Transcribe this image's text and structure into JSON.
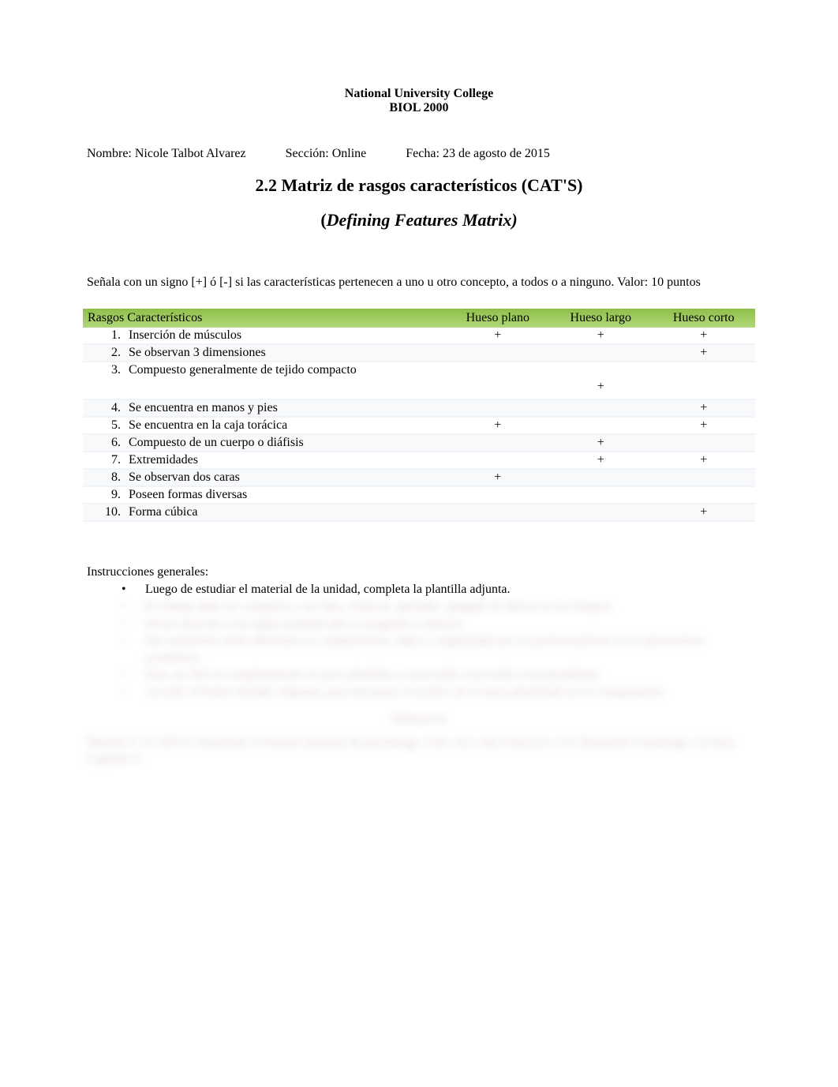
{
  "header": {
    "line1": "National University College",
    "line2": "BIOL 2000"
  },
  "info": {
    "name_label": "Nombre: ",
    "name_value": "Nicole Talbot Alvarez",
    "section_label": "Sección: ",
    "section_value": "Online",
    "date_label": "Fecha: ",
    "date_value": "23 de agosto de 2015"
  },
  "title": {
    "main": "2.2 Matriz de rasgos característicos (CAT'S)",
    "sub_open": "(",
    "sub_italic": "Defining Features Matrix)",
    "sub_close": ""
  },
  "instructions_top": "Señala con un signo  [+]   ó  [-]    si las características pertenecen a uno u otro concepto,  a todos o a ninguno. Valor: 10 puntos",
  "table": {
    "headers": {
      "rasgos": "Rasgos Característicos",
      "plano": "Hueso plano",
      "largo": "Hueso largo",
      "corto": "Hueso corto"
    },
    "header_bg_top": "#8fbf4a",
    "header_bg_bottom": "#b2d77a",
    "row_alt_bg": "#f8f9fb",
    "row_border": "#f0f3f8",
    "rows": [
      {
        "num": "1.",
        "label": "Inserción de músculos",
        "plano": "+",
        "largo": "+",
        "corto": "+",
        "tall": false
      },
      {
        "num": "2.",
        "label": "Se observan  3 dimensiones",
        "plano": "",
        "largo": "",
        "corto": "+",
        "tall": false
      },
      {
        "num": "3.",
        "label": "Compuesto generalmente de tejido compacto",
        "plano": "",
        "largo": "+",
        "corto": "",
        "tall": true
      },
      {
        "num": "4.",
        "label": "Se encuentra en manos y pies",
        "plano": "",
        "largo": "",
        "corto": "+",
        "tall": false
      },
      {
        "num": "5.",
        "label": "Se encuentra en la caja torácica",
        "plano": "+",
        "largo": "",
        "corto": "+",
        "tall": false
      },
      {
        "num": "6.",
        "label": "Compuesto de un cuerpo o diáfisis",
        "plano": "",
        "largo": "+",
        "corto": "",
        "tall": false
      },
      {
        "num": "7.",
        "label": "Extremidades",
        "plano": "",
        "largo": "+",
        "corto": "+",
        "tall": false
      },
      {
        "num": "8.",
        "label": "Se observan dos caras",
        "plano": "+",
        "largo": "",
        "corto": "",
        "tall": false
      },
      {
        "num": "9.",
        "label": "Poseen formas diversas",
        "plano": "",
        "largo": "",
        "corto": "",
        "tall": false
      },
      {
        "num": "10.",
        "label": "Forma cúbica",
        "plano": "",
        "largo": "",
        "corto": "+",
        "tall": false
      }
    ]
  },
  "instructions_general": {
    "heading": "Instrucciones generales:",
    "visible_bullet": "Luego de estudiar el material de la unidad, completa la plantilla adjunta.",
    "blurred_bullets": [
      "El trabajo debe ser completo y sin falta, redactar, aprender, apegado de filtros en los bloques.",
      "Preste atención a las reglas gramaticales y ortografía y sintaxis.",
      "Sus respuestas serán diferentes en cumplimiento, lógico, originalidad por su profesionalismo en el glosiendose académico.",
      "Este, ser fiel en completamente la tarea plantillas, y marcando correctado correspondiente.",
      "Acceder al botón titulado Adjuntar, para encontrar el archivo de la tarea plantillada en su computadora."
    ],
    "ref_heading": "Referencia",
    "ref_body": "Marieb, E. N. (2011). Essentials of human anatomy & physiology. (10a. ed.). San Francisco, CA: Benjamin Cummings.\nLectura: Capítulo 5"
  }
}
